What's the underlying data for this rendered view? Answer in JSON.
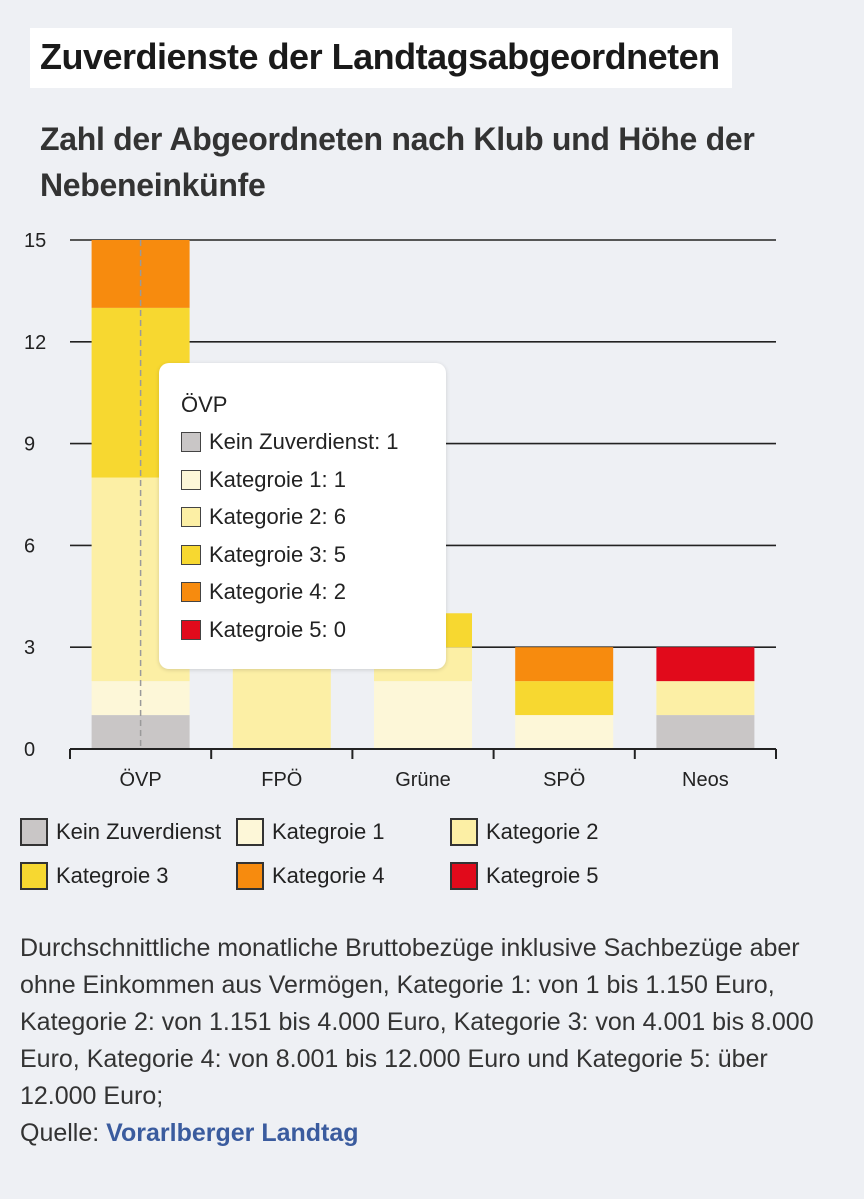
{
  "header": {
    "title": "Zuverdienste der Landtagsabgeordneten",
    "subtitle": "Zahl der Abgeordneten nach Klub und Höhe der Nebeneinkünfe"
  },
  "colors": {
    "Kein Zuverdienst": "#c9c6c6",
    "Kategroie 1": "#fdf7d8",
    "Kategorie 2": "#fcefa5",
    "Kategroie 3": "#f7d830",
    "Kategorie 4": "#f78b0e",
    "Kategroie 5": "#e10a1b"
  },
  "chart_data": {
    "type": "bar",
    "stacked": true,
    "categories": [
      "ÖVP",
      "FPÖ",
      "Grüne",
      "SPÖ",
      "Neos"
    ],
    "series": [
      {
        "name": "Kein Zuverdienst",
        "values": [
          1,
          0,
          0,
          0,
          1
        ]
      },
      {
        "name": "Kategroie 1",
        "values": [
          1,
          0,
          2,
          1,
          0
        ]
      },
      {
        "name": "Kategorie 2",
        "values": [
          6,
          3,
          1,
          0,
          1
        ]
      },
      {
        "name": "Kategroie 3",
        "values": [
          5,
          0,
          1,
          1,
          0
        ]
      },
      {
        "name": "Kategorie 4",
        "values": [
          2,
          0,
          0,
          1,
          0
        ]
      },
      {
        "name": "Kategroie 5",
        "values": [
          0,
          0,
          0,
          0,
          1
        ]
      }
    ],
    "yticks": [
      0,
      3,
      6,
      9,
      12,
      15
    ],
    "ylim": [
      0,
      15
    ],
    "grid": true,
    "legend_position": "bottom",
    "tooltip": {
      "category": "ÖVP",
      "title": "ÖVP",
      "rows": [
        {
          "label": "Kein Zuverdienst: 1",
          "series": "Kein Zuverdienst"
        },
        {
          "label": "Kategroie 1: 1",
          "series": "Kategroie 1"
        },
        {
          "label": "Kategorie 2: 6",
          "series": "Kategorie 2"
        },
        {
          "label": "Kategroie 3: 5",
          "series": "Kategroie 3"
        },
        {
          "label": "Kategorie 4: 2",
          "series": "Kategorie 4"
        },
        {
          "label": "Kategroie 5: 0",
          "series": "Kategroie 5"
        }
      ]
    }
  },
  "footer": {
    "note": "Durchschnittliche monatliche Bruttobezüge inklusive Sachbezüge aber ohne Einkommen aus Vermögen, Kategorie 1: von 1 bis 1.150 Euro, Kategorie 2: von 1.151 bis 4.000 Euro, Kategorie 3: von 4.001 bis 8.000 Euro, Kategorie 4: von 8.001 bis 12.000 Euro und Kategorie 5: über 12.000 Euro;",
    "source_prefix": "Quelle:",
    "source_name": "Vorarlberger Landtag"
  }
}
